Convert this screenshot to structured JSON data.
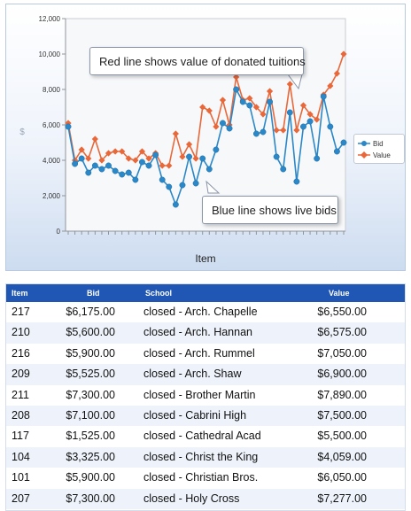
{
  "chart_data": {
    "type": "line",
    "xlabel": "Item",
    "ylabel": "$",
    "ylim": [
      0,
      12000
    ],
    "y_ticks": [
      "0",
      "2,000",
      "4,000",
      "6,000",
      "8,000",
      "10,000",
      "12,000"
    ],
    "y_tick_values": [
      0,
      2000,
      4000,
      6000,
      8000,
      10000,
      12000
    ],
    "legend_position": "right",
    "grid": false,
    "series": [
      {
        "name": "Bid",
        "color": "#2b88c8",
        "values": [
          5900,
          3800,
          4100,
          3300,
          3700,
          3500,
          3700,
          3400,
          3200,
          3300,
          2900,
          3900,
          3700,
          4300,
          2900,
          2500,
          1500,
          2600,
          4200,
          2700,
          4100,
          3500,
          4600,
          6100,
          5800,
          8000,
          7300,
          7100,
          5500,
          5600,
          7300,
          4200,
          3500,
          6700,
          2800,
          5900,
          6200,
          4100,
          7600,
          5900,
          4500,
          5000
        ]
      },
      {
        "name": "Value",
        "color": "#e8683a",
        "values": [
          6100,
          4000,
          4600,
          4100,
          5200,
          4000,
          4400,
          4500,
          4500,
          4100,
          4000,
          4500,
          4100,
          4400,
          3700,
          3700,
          5500,
          4200,
          4900,
          4100,
          7000,
          6800,
          5900,
          7400,
          6000,
          8700,
          7400,
          7500,
          7000,
          6600,
          7900,
          5700,
          5700,
          8300,
          5700,
          7100,
          6600,
          6300,
          7700,
          8200,
          8900,
          10000
        ]
      }
    ],
    "annotations": [
      "Red line shows value of donated tuitions",
      "Blue line shows live bids"
    ]
  },
  "table": {
    "headers": {
      "item": "Item",
      "bid": "Bid",
      "school": "School",
      "value": "Value"
    },
    "rows": [
      {
        "item": "217",
        "bid": "$6,175.00",
        "school": "closed - Arch. Chapelle",
        "value": "$6,550.00"
      },
      {
        "item": "210",
        "bid": "$5,600.00",
        "school": "closed - Arch. Hannan",
        "value": "$6,575.00"
      },
      {
        "item": "216",
        "bid": "$5,900.00",
        "school": "closed - Arch. Rummel",
        "value": "$7,050.00"
      },
      {
        "item": "209",
        "bid": "$5,525.00",
        "school": "closed - Arch. Shaw",
        "value": "$6,900.00"
      },
      {
        "item": "211",
        "bid": "$7,300.00",
        "school": "closed - Brother Martin",
        "value": "$7,890.00"
      },
      {
        "item": "208",
        "bid": "$7,100.00",
        "school": "closed - Cabrini High",
        "value": "$7,500.00"
      },
      {
        "item": "117",
        "bid": "$1,525.00",
        "school": "closed - Cathedral Acad",
        "value": "$5,500.00"
      },
      {
        "item": "104",
        "bid": "$3,325.00",
        "school": "closed - Christ the King",
        "value": "$4,059.00"
      },
      {
        "item": "101",
        "bid": "$5,900.00",
        "school": "closed - Christian Bros.",
        "value": "$6,050.00"
      },
      {
        "item": "207",
        "bid": "$7,300.00",
        "school": "closed - Holy Cross",
        "value": "$7,277.00"
      }
    ]
  }
}
